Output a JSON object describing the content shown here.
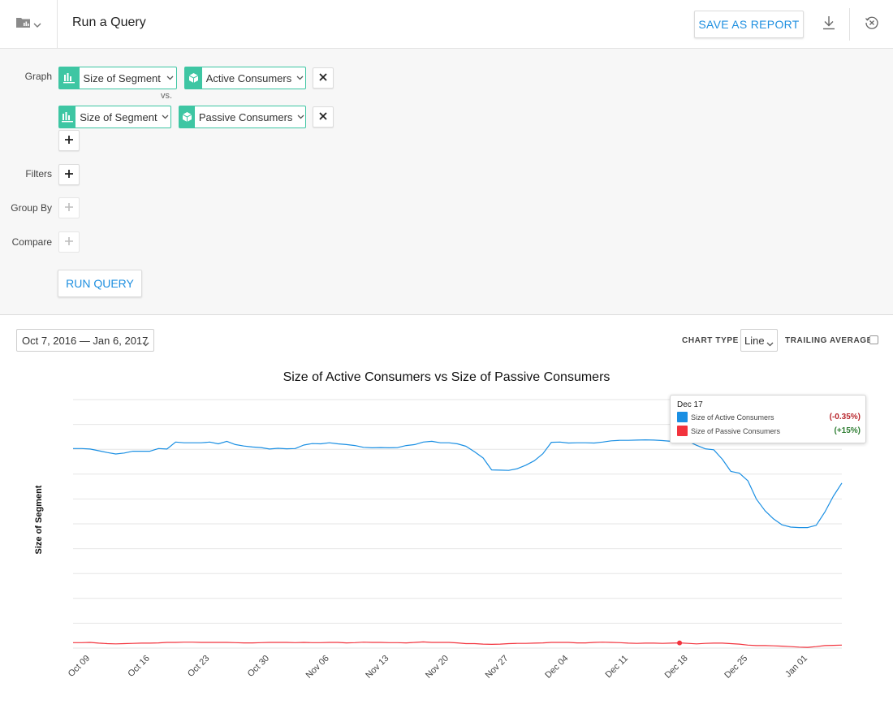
{
  "header": {
    "title": "Run a Query",
    "save_label": "SAVE AS REPORT"
  },
  "query": {
    "graph_label": "Graph",
    "vs_label": "vs.",
    "graph_rows": [
      {
        "measure": "Size of Segment",
        "segment": "Active Consumers"
      },
      {
        "measure": "Size of Segment",
        "segment": "Passive Consumers"
      }
    ],
    "filters_label": "Filters",
    "group_by_label": "Group By",
    "compare_label": "Compare",
    "run_label": "RUN QUERY"
  },
  "controls": {
    "date_range": "Oct 7, 2016 — Jan 6, 2017",
    "chart_type_label": "CHART TYPE",
    "chart_type_value": "Line",
    "trailing_label": "TRAILING AVERAGE"
  },
  "tooltip": {
    "date": "Dec 17",
    "rows": [
      {
        "name": "Size of Active Consumers",
        "change": "(-0.35%)",
        "color": "#1a8fe3",
        "change_color": "#b8262c"
      },
      {
        "name": "Size of Passive Consumers",
        "change": "(+15%)",
        "color": "#f2333d",
        "change_color": "#2e7d32"
      }
    ]
  },
  "chart_data": {
    "type": "line",
    "title": "Size of Active Consumers vs Size of Passive Consumers",
    "xlabel": "",
    "ylabel": "Size of Segment",
    "ylim": [
      0,
      100
    ],
    "grid": true,
    "x_ticks": [
      "Oct 09",
      "Oct 16",
      "Oct 23",
      "Oct 30",
      "Nov 06",
      "Nov 13",
      "Nov 20",
      "Nov 27",
      "Dec 04",
      "Dec 11",
      "Dec 18",
      "Dec 25",
      "Jan 01"
    ],
    "x_start": "Oct 07",
    "highlight_index": 71,
    "series": [
      {
        "name": "Size of Active Consumers",
        "color": "#1a8fe3",
        "values": [
          80.3,
          80.3,
          80.1,
          79.4,
          78.7,
          78.1,
          78.5,
          79.2,
          79.2,
          79.2,
          80.3,
          80.1,
          82.9,
          82.6,
          82.6,
          82.6,
          82.9,
          82.2,
          83.2,
          81.9,
          81.3,
          80.9,
          80.7,
          80.1,
          80.4,
          80.2,
          80.3,
          81.7,
          82.3,
          82.2,
          82.6,
          82.2,
          81.9,
          81.5,
          80.8,
          80.6,
          80.7,
          80.6,
          80.7,
          81.5,
          81.9,
          82.9,
          83.2,
          82.6,
          82.6,
          82.2,
          81.2,
          79.0,
          76.5,
          71.7,
          71.6,
          71.5,
          72.2,
          73.6,
          75.4,
          78.2,
          82.8,
          82.9,
          82.5,
          82.6,
          82.6,
          82.5,
          82.9,
          83.4,
          83.6,
          83.6,
          83.7,
          83.8,
          83.7,
          83.5,
          83.2,
          83.4,
          83.2,
          81.6,
          80.2,
          79.8,
          76.0,
          71.1,
          70.4,
          67.3,
          59.9,
          55.3,
          52.0,
          49.6,
          48.7,
          48.5,
          48.5,
          49.4,
          54.7,
          61.1,
          66.4
        ]
      },
      {
        "name": "Size of Passive Consumers",
        "color": "#f2333d",
        "values": [
          2.2,
          2.2,
          2.3,
          2.0,
          1.8,
          1.7,
          1.8,
          1.9,
          2.0,
          2.0,
          2.1,
          2.3,
          2.3,
          2.4,
          2.4,
          2.3,
          2.3,
          2.3,
          2.3,
          2.2,
          2.1,
          2.1,
          2.2,
          2.3,
          2.3,
          2.3,
          2.2,
          2.3,
          2.2,
          2.2,
          2.3,
          2.3,
          2.1,
          2.2,
          2.4,
          2.3,
          2.3,
          2.2,
          2.2,
          2.1,
          2.3,
          2.5,
          2.3,
          2.3,
          2.3,
          2.1,
          1.8,
          1.8,
          1.6,
          1.5,
          1.6,
          1.8,
          1.9,
          1.9,
          2.0,
          2.1,
          2.3,
          2.3,
          2.3,
          2.1,
          2.1,
          2.3,
          2.4,
          2.3,
          2.2,
          2.0,
          1.9,
          2.0,
          2.0,
          1.9,
          2.0,
          2.1,
          1.9,
          1.7,
          1.9,
          2.0,
          2.0,
          1.8,
          1.6,
          1.2,
          1.0,
          1.0,
          0.9,
          0.8,
          0.6,
          0.4,
          0.3,
          0.6,
          1.0,
          1.1,
          1.2
        ]
      }
    ]
  }
}
